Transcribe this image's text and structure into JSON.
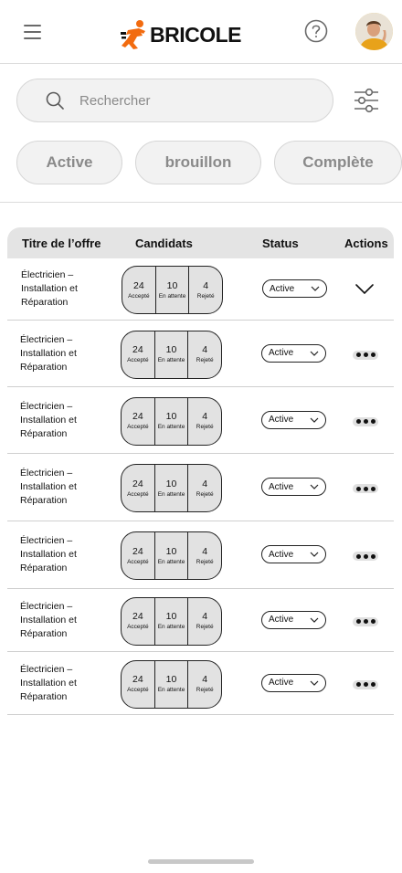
{
  "header": {
    "brand": "BRICOLE",
    "brand_color": "#f26b0f",
    "icons": [
      "menu-icon",
      "help-icon",
      "avatar"
    ]
  },
  "search": {
    "placeholder": "Rechercher"
  },
  "tabs": [
    {
      "label": "Active"
    },
    {
      "label": "brouillon"
    },
    {
      "label": "Complète"
    }
  ],
  "table": {
    "columns": [
      "Titre de l’offre",
      "Candidats",
      "Status",
      "Actions"
    ],
    "candidate_labels": {
      "accepted": "Accepté",
      "pending": "En attente",
      "rejected": "Rejeté"
    },
    "rows": [
      {
        "title": "Électricien – Installation et Réparation",
        "accepted": "24",
        "pending": "10",
        "rejected": "4",
        "status": "Active",
        "action": "chevron-down-icon"
      },
      {
        "title": "Électricien – Installation et Réparation",
        "accepted": "24",
        "pending": "10",
        "rejected": "4",
        "status": "Active",
        "action": "more-icon"
      },
      {
        "title": "Électricien – Installation et Réparation",
        "accepted": "24",
        "pending": "10",
        "rejected": "4",
        "status": "Active",
        "action": "more-icon"
      },
      {
        "title": "Électricien – Installation et Réparation",
        "accepted": "24",
        "pending": "10",
        "rejected": "4",
        "status": "Active",
        "action": "more-icon"
      },
      {
        "title": "Électricien – Installation et Réparation",
        "accepted": "24",
        "pending": "10",
        "rejected": "4",
        "status": "Active",
        "action": "more-icon"
      },
      {
        "title": "Électricien – Installation et Réparation",
        "accepted": "24",
        "pending": "10",
        "rejected": "4",
        "status": "Active",
        "action": "more-icon"
      },
      {
        "title": "Électricien – Installation et Réparation",
        "accepted": "24",
        "pending": "10",
        "rejected": "4",
        "status": "Active",
        "action": "more-icon"
      }
    ]
  }
}
